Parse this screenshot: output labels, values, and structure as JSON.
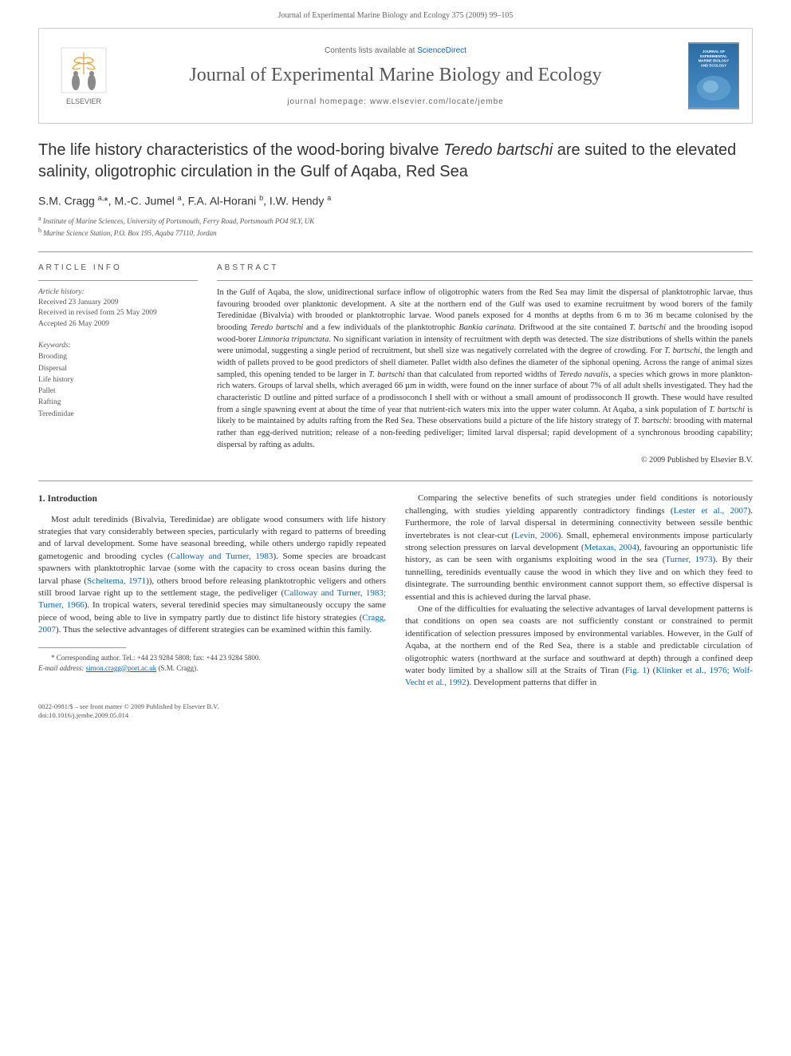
{
  "header": {
    "running_head": "Journal of Experimental Marine Biology and Ecology 375 (2009) 99–105"
  },
  "banner": {
    "contents_prefix": "Contents lists available at ",
    "contents_link": "ScienceDirect",
    "journal_name": "Journal of Experimental Marine Biology and Ecology",
    "homepage_label": "journal homepage: www.elsevier.com/locate/jembe",
    "publisher_name": "ELSEVIER",
    "cover_title_line1": "JOURNAL OF",
    "cover_title_line2": "EXPERIMENTAL",
    "cover_title_line3": "MARINE BIOLOGY",
    "cover_title_line4": "AND ECOLOGY",
    "logo_colors": {
      "tree": "#e8a23a",
      "figure": "#5a5a5a",
      "border": "#cccccc"
    },
    "cover_colors": {
      "bg_top": "#2b6ca3",
      "bg_bottom": "#4a8fc7",
      "text": "#ffffff"
    }
  },
  "article": {
    "title_pre": "The life history characteristics of the wood-boring bivalve ",
    "title_species": "Teredo bartschi",
    "title_post": " are suited to the elevated salinity, oligotrophic circulation in the Gulf of Aqaba, Red Sea",
    "authors_html": "S.M. Cragg <sup>a,</sup>*, M.-C. Jumel <sup>a</sup>, F.A. Al-Horani <sup>b</sup>, I.W. Hendy <sup>a</sup>",
    "affiliations": [
      {
        "sup": "a",
        "text": "Institute of Marine Sciences, University of Portsmouth, Ferry Road, Portsmouth PO4 9LY, UK"
      },
      {
        "sup": "b",
        "text": "Marine Science Station, P.O. Box 195, Aqaba 77110, Jordan"
      }
    ]
  },
  "article_info": {
    "header": "ARTICLE INFO",
    "history_label": "Article history:",
    "history": [
      "Received 23 January 2009",
      "Received in revised form 25 May 2009",
      "Accepted 26 May 2009"
    ],
    "keywords_label": "Keywords:",
    "keywords": [
      "Brooding",
      "Dispersal",
      "Life history",
      "Pallet",
      "Rafting",
      "Teredinidae"
    ]
  },
  "abstract": {
    "header": "ABSTRACT",
    "text_pre": "In the Gulf of Aqaba, the slow, unidirectional surface inflow of oligotrophic waters from the Red Sea may limit the dispersal of planktotrophic larvae, thus favouring brooded over planktonic development. A site at the northern end of the Gulf was used to examine recruitment by wood borers of the family Teredinidae (Bivalvia) with brooded or planktotrophic larvae. Wood panels exposed for 4 months at depths from 6 m to 36 m became colonised by the brooding ",
    "sp1": "Teredo bartschi",
    "text_2": " and a few individuals of the planktotrophic ",
    "sp2": "Bankia carinata",
    "text_3": ". Driftwood at the site contained ",
    "sp3": "T. bartschi",
    "text_4": " and the brooding isopod wood-borer ",
    "sp4": "Limnoria tripunctata",
    "text_5": ". No significant variation in intensity of recruitment with depth was detected. The size distributions of shells within the panels were unimodal, suggesting a single period of recruitment, but shell size was negatively correlated with the degree of crowding. For ",
    "sp5": "T. bartschi",
    "text_6": ", the length and width of pallets proved to be good predictors of shell diameter. Pallet width also defines the diameter of the siphonal opening. Across the range of animal sizes sampled, this opening tended to be larger in ",
    "sp6": "T. bartschi",
    "text_7": " than that calculated from reported widths of ",
    "sp7": "Teredo navalis",
    "text_8": ", a species which grows in more plankton-rich waters. Groups of larval shells, which averaged 66 µm in width, were found on the inner surface of about 7% of all adult shells investigated. They had the characteristic D outline and pitted surface of a prodissoconch I shell with or without a small amount of prodissoconch II growth. These would have resulted from a single spawning event at about the time of year that nutrient-rich waters mix into the upper water column. At Aqaba, a sink population of ",
    "sp8": "T. bartschi",
    "text_9": " is likely to be maintained by adults rafting from the Red Sea. These observations build a picture of the life history strategy of ",
    "sp9": "T. bartschi",
    "text_10": ": brooding with maternal rather than egg-derived nutrition; release of a non-feeding pediveliger; limited larval dispersal; rapid development of a synchronous brooding capability; dispersal by rafting as adults.",
    "copyright": "© 2009 Published by Elsevier B.V."
  },
  "body": {
    "heading": "1. Introduction",
    "col1_p1_a": "Most adult teredinids (Bivalvia, Teredinidae) are obligate wood consumers with life history strategies that vary considerably between species, particularly with regard to patterns of breeding and of larval development. Some have seasonal breeding, while others undergo rapidly repeated gametogenic and brooding cycles (",
    "col1_ref1": "Calloway and Turner, 1983",
    "col1_p1_b": "). Some species are broadcast spawners with planktotrophic larvae (some with the capacity to cross ocean basins during the larval phase (",
    "col1_ref2": "Scheltema, 1971",
    "col1_p1_c": ")), others brood before releasing planktotrophic veligers and others still brood larvae right up to the settlement stage, the pediveliger (",
    "col1_ref3": "Calloway and Turner, 1983; Turner, 1966",
    "col1_p1_d": "). In tropical waters, several teredinid species may simultaneously occupy the same piece of wood, being able to live in sympatry partly due to distinct life history strategies (",
    "col1_ref4": "Cragg, 2007",
    "col1_p1_e": "). Thus the selective advantages of different strategies can be examined within this family.",
    "col2_p1_a": "Comparing the selective benefits of such strategies under field conditions is notoriously challenging, with studies yielding apparently contradictory findings (",
    "col2_ref1": "Lester et al., 2007",
    "col2_p1_b": "). Furthermore, the role of larval dispersal in determining connectivity between sessile benthic invertebrates is not clear-cut (",
    "col2_ref2": "Levin, 2006",
    "col2_p1_c": "). Small, ephemeral environments impose particularly strong selection pressures on larval development (",
    "col2_ref3": "Metaxas, 2004",
    "col2_p1_d": "), favouring an opportunistic life history, as can be seen with organisms exploiting wood in the sea (",
    "col2_ref4": "Turner, 1973",
    "col2_p1_e": "). By their tunnelling, teredinids eventually cause the wood in which they live and on which they feed to disintegrate. The surrounding benthic environment cannot support them, so effective dispersal is essential and this is achieved during the larval phase.",
    "col2_p2_a": "One of the difficulties for evaluating the selective advantages of larval development patterns is that conditions on open sea coasts are not sufficiently constant or constrained to permit identification of selection pressures imposed by environmental variables. However, in the Gulf of Aqaba, at the northern end of the Red Sea, there is a stable and predictable circulation of oligotrophic waters (northward at the surface and southward at depth) through a confined deep water body limited by a shallow sill at the Straits of Tiran (",
    "col2_ref5": "Fig. 1",
    "col2_p2_b": ") (",
    "col2_ref6": "Klinker et al., 1976; Wolf-Vecht et al., 1992",
    "col2_p2_c": "). Development patterns that differ in"
  },
  "footnote": {
    "corr_label": "* Corresponding author. Tel.: +44 23 9284 5808; fax: +44 23 9284 5800.",
    "email_label": "E-mail address: ",
    "email": "simon.cragg@port.ac.uk",
    "email_post": " (S.M. Cragg)."
  },
  "footer": {
    "line1": "0022-0981/$ – see front matter © 2009 Published by Elsevier B.V.",
    "line2": "doi:10.1016/j.jembe.2009.05.014"
  },
  "colors": {
    "text": "#333333",
    "muted": "#666666",
    "link": "#0066cc",
    "rule": "#999999"
  }
}
